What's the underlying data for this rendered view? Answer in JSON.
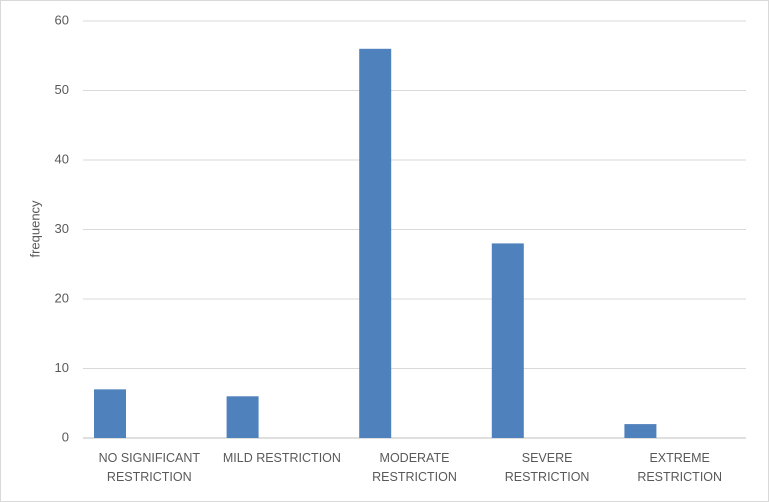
{
  "chart_data": {
    "type": "bar",
    "y_label": "frequency",
    "categories": [
      "NO SIGNIFICANT RESTRICTION",
      "MILD RESTRICTION",
      "MODERATE RESTRICTION",
      "SEVERE RESTRICTION",
      "EXTREME RESTRICTION"
    ],
    "values": [
      7,
      6,
      56,
      28,
      2
    ],
    "color": "#4f81bd",
    "ylim": [
      0,
      60
    ],
    "yticks": [
      0,
      10,
      20,
      30,
      40,
      50,
      60
    ],
    "grid": true
  }
}
